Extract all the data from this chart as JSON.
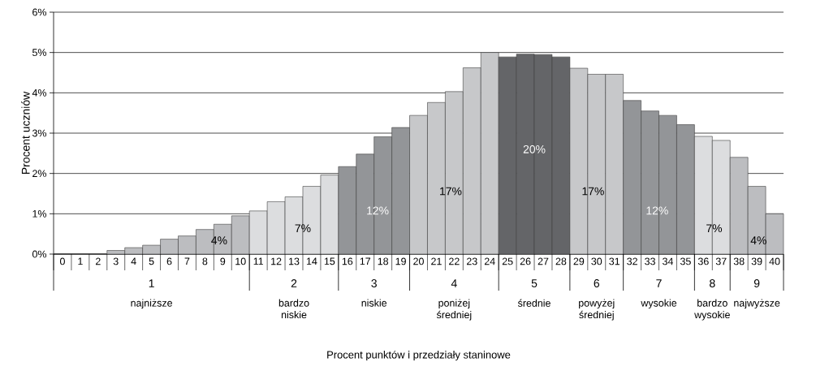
{
  "chart_data": {
    "type": "bar",
    "ylabel": "Procent uczniów",
    "categories": [
      "0",
      "1",
      "2",
      "3",
      "4",
      "5",
      "6",
      "7",
      "8",
      "9",
      "10",
      "11",
      "12",
      "13",
      "14",
      "15",
      "16",
      "17",
      "18",
      "19",
      "20",
      "21",
      "22",
      "23",
      "24",
      "25",
      "26",
      "27",
      "28",
      "29",
      "30",
      "31",
      "32",
      "33",
      "34",
      "35",
      "36",
      "37",
      "38",
      "39",
      "40"
    ],
    "values": [
      0,
      0,
      0,
      0.09,
      0.16,
      0.22,
      0.37,
      0.45,
      0.61,
      0.74,
      0.95,
      1.07,
      1.3,
      1.42,
      1.68,
      1.96,
      2.17,
      2.48,
      2.91,
      3.14,
      3.44,
      3.76,
      4.03,
      4.62,
      5.0,
      4.89,
      4.96,
      4.95,
      4.89,
      4.61,
      4.46,
      4.46,
      3.81,
      3.55,
      3.44,
      3.21,
      2.92,
      2.82,
      2.4,
      1.68,
      1.0
    ],
    "colors": [
      "#bcbdc0",
      "#bcbdc0",
      "#bcbdc0",
      "#bcbdc0",
      "#bcbdc0",
      "#bcbdc0",
      "#bcbdc0",
      "#bcbdc0",
      "#bcbdc0",
      "#bcbdc0",
      "#bcbdc0",
      "#dcdddf",
      "#dcdddf",
      "#dcdddf",
      "#dcdddf",
      "#dcdddf",
      "#939598",
      "#939598",
      "#939598",
      "#939598",
      "#c7c8ca",
      "#c7c8ca",
      "#c7c8ca",
      "#c7c8ca",
      "#c7c8ca",
      "#646568",
      "#646568",
      "#646568",
      "#646568",
      "#c7c8ca",
      "#c7c8ca",
      "#c7c8ca",
      "#939598",
      "#939598",
      "#939598",
      "#939598",
      "#dcdddf",
      "#dcdddf",
      "#bcbdc0",
      "#bcbdc0",
      "#bcbdc0"
    ],
    "ylim": [
      0,
      6
    ],
    "yticks": [
      {
        "value": 0,
        "label": "0%"
      },
      {
        "value": 1,
        "label": "1%"
      },
      {
        "value": 2,
        "label": "2%"
      },
      {
        "value": 3,
        "label": "3%"
      },
      {
        "value": 4,
        "label": "4%"
      },
      {
        "value": 5,
        "label": "5%"
      },
      {
        "value": 6,
        "label": "6%"
      }
    ],
    "grid": "y",
    "annotations": [
      "4%",
      "7%",
      "12%",
      "17%",
      "20%",
      "17%",
      "12%",
      "7%",
      "4%",
      "1",
      "2",
      "3",
      "4",
      "5",
      "6",
      "7",
      "8",
      "9",
      "najniższe",
      "bardzo niskie",
      "niskie",
      "poniżej średniej",
      "średnie",
      "powyżej średniej",
      "wysokie",
      "bardzo wysokie",
      "najwyższe",
      "Procent punktów i przedziały staninowe"
    ]
  }
}
